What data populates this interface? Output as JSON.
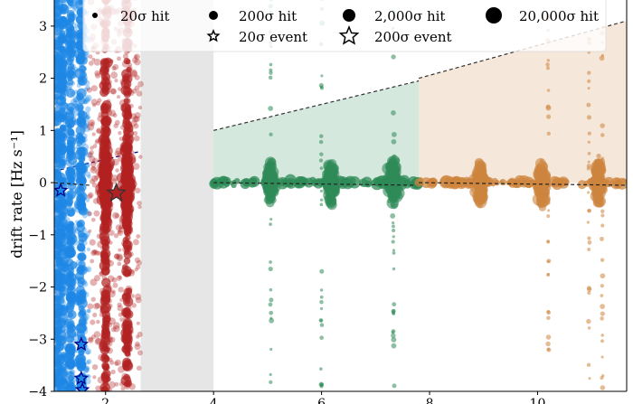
{
  "chart_data": {
    "type": "scatter",
    "ylabel": "drift rate [Hz s⁻¹]",
    "xlim": [
      1.05,
      11.65
    ],
    "ylim": [
      -4,
      3.5
    ],
    "yticks": [
      3,
      2,
      1,
      0,
      -1,
      -2,
      -3,
      -4
    ],
    "xticks": [
      2,
      4,
      6,
      8,
      10
    ],
    "grid": false,
    "legend": {
      "placement": "top",
      "entries": [
        {
          "label": "20σ hit",
          "marker": "circle",
          "size": 3
        },
        {
          "label": "200σ hit",
          "marker": "circle",
          "size": 5
        },
        {
          "label": "2,000σ hit",
          "marker": "circle",
          "size": 7
        },
        {
          "label": "20,000σ hit",
          "marker": "circle",
          "size": 9
        },
        {
          "label": "20σ event",
          "marker": "star",
          "size": 6
        },
        {
          "label": "200σ event",
          "marker": "star",
          "size": 10
        }
      ]
    },
    "excluded_band": {
      "x": [
        2.65,
        4.0
      ],
      "color": "#e6e6e6"
    },
    "groups": [
      {
        "color": "#1e88e5",
        "x": [
          1.05,
          1.7
        ],
        "upper": [
          [
            1.05,
            0.22
          ],
          [
            2.65,
            0.6
          ]
        ],
        "columns": [
          1.1,
          1.2,
          1.35,
          1.55
        ],
        "clusters": []
      },
      {
        "color": "#b22222",
        "x": [
          1.7,
          2.65
        ],
        "upper": null,
        "columns": [
          2.0,
          2.4
        ],
        "clusters": [
          2.0,
          2.4
        ]
      },
      {
        "color": "#2e8b57",
        "x": [
          4.0,
          7.8
        ],
        "upper": [
          [
            4.0,
            1.0
          ],
          [
            7.8,
            1.95
          ]
        ],
        "columns": [
          5.06,
          6.0,
          7.33
        ],
        "clusters": [
          5.06,
          6.17,
          7.33
        ]
      },
      {
        "color": "#cd853f",
        "x": [
          7.8,
          11.65
        ],
        "upper": [
          [
            7.8,
            2.0
          ],
          [
            11.65,
            3.1
          ]
        ],
        "columns": [
          10.2,
          11.2,
          10.95
        ],
        "clusters": [
          8.94,
          10.08,
          11.13
        ]
      }
    ],
    "events": [
      {
        "x": 1.17,
        "y": -0.15,
        "size": "20σ",
        "color": "#1e88e5"
      },
      {
        "x": 1.55,
        "y": -3.1,
        "size": "20σ",
        "color": "#1e88e5"
      },
      {
        "x": 1.55,
        "y": -3.75,
        "size": "20σ",
        "color": "#1e88e5"
      },
      {
        "x": 1.57,
        "y": -3.97,
        "size": "20σ",
        "color": "#1e88e5"
      },
      {
        "x": 2.2,
        "y": -0.2,
        "size": "200σ",
        "color": "#b22222"
      }
    ]
  }
}
